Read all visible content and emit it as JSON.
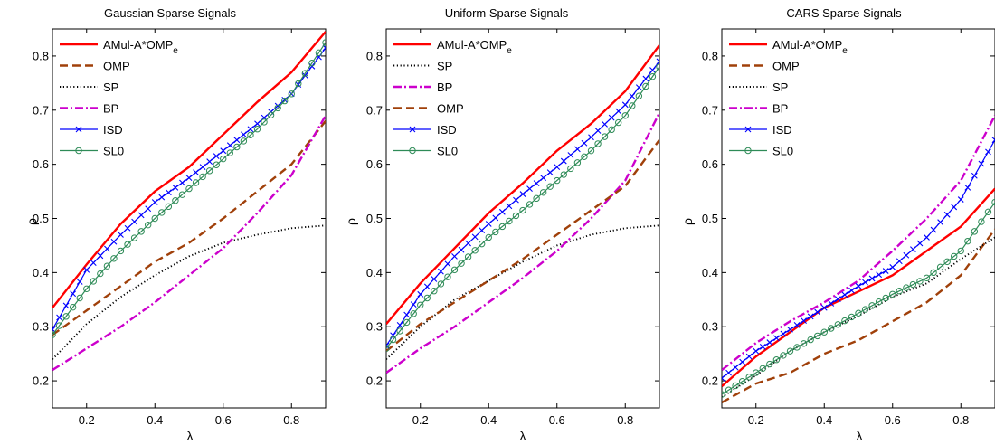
{
  "chart_data": [
    {
      "type": "line",
      "title": "Gaussian Sparse Signals",
      "xlabel": "λ",
      "ylabel": "ρ",
      "xlim": [
        0.1,
        0.9
      ],
      "ylim": [
        0.15,
        0.85
      ],
      "xticks": [
        0.2,
        0.4,
        0.6,
        0.8
      ],
      "yticks": [
        0.2,
        0.3,
        0.4,
        0.5,
        0.6,
        0.7,
        0.8
      ],
      "legend_position": "top-left",
      "grid": false,
      "series": [
        {
          "name": "AMul-A*OMP",
          "name_sub": "e",
          "color": "#ff0000",
          "style": "solid",
          "marker": "none",
          "x": [
            0.1,
            0.2,
            0.3,
            0.4,
            0.5,
            0.6,
            0.7,
            0.8,
            0.9
          ],
          "y": [
            0.335,
            0.415,
            0.49,
            0.55,
            0.595,
            0.655,
            0.715,
            0.77,
            0.845
          ]
        },
        {
          "name": "OMP",
          "color": "#a0400a",
          "style": "dashed",
          "marker": "none",
          "x": [
            0.1,
            0.2,
            0.3,
            0.4,
            0.5,
            0.6,
            0.7,
            0.8,
            0.9
          ],
          "y": [
            0.285,
            0.33,
            0.375,
            0.42,
            0.455,
            0.5,
            0.55,
            0.6,
            0.68
          ]
        },
        {
          "name": "SP",
          "color": "#000000",
          "style": "dotted",
          "marker": "none",
          "x": [
            0.1,
            0.2,
            0.3,
            0.4,
            0.5,
            0.6,
            0.7,
            0.8,
            0.9
          ],
          "y": [
            0.24,
            0.305,
            0.355,
            0.395,
            0.43,
            0.455,
            0.47,
            0.482,
            0.487
          ]
        },
        {
          "name": "BP",
          "color": "#cc00cc",
          "style": "dashdot",
          "marker": "none",
          "x": [
            0.1,
            0.2,
            0.3,
            0.4,
            0.5,
            0.6,
            0.7,
            0.8,
            0.9
          ],
          "y": [
            0.22,
            0.26,
            0.3,
            0.345,
            0.395,
            0.445,
            0.51,
            0.58,
            0.69
          ]
        },
        {
          "name": "ISD",
          "color": "#0000ff",
          "style": "solid",
          "marker": "x",
          "x": [
            0.1,
            0.2,
            0.3,
            0.4,
            0.5,
            0.6,
            0.7,
            0.8,
            0.9
          ],
          "y": [
            0.295,
            0.405,
            0.47,
            0.53,
            0.575,
            0.625,
            0.675,
            0.73,
            0.815
          ]
        },
        {
          "name": "SL0",
          "color": "#2e8b57",
          "style": "solid",
          "marker": "o",
          "x": [
            0.1,
            0.2,
            0.3,
            0.4,
            0.5,
            0.6,
            0.7,
            0.8,
            0.9
          ],
          "y": [
            0.285,
            0.37,
            0.44,
            0.5,
            0.555,
            0.61,
            0.665,
            0.73,
            0.825
          ]
        }
      ]
    },
    {
      "type": "line",
      "title": "Uniform Sparse Signals",
      "xlabel": "λ",
      "ylabel": "ρ",
      "xlim": [
        0.1,
        0.9
      ],
      "ylim": [
        0.15,
        0.85
      ],
      "xticks": [
        0.2,
        0.4,
        0.6,
        0.8
      ],
      "yticks": [
        0.2,
        0.3,
        0.4,
        0.5,
        0.6,
        0.7,
        0.8
      ],
      "legend_position": "top-left",
      "grid": false,
      "series": [
        {
          "name": "AMul-A*OMP",
          "name_sub": "e",
          "color": "#ff0000",
          "style": "solid",
          "marker": "none",
          "x": [
            0.1,
            0.2,
            0.3,
            0.4,
            0.5,
            0.6,
            0.7,
            0.8,
            0.9
          ],
          "y": [
            0.305,
            0.38,
            0.445,
            0.51,
            0.565,
            0.625,
            0.675,
            0.735,
            0.82
          ]
        },
        {
          "name": "SP",
          "color": "#000000",
          "style": "dotted",
          "marker": "none",
          "x": [
            0.1,
            0.2,
            0.3,
            0.4,
            0.5,
            0.6,
            0.7,
            0.8,
            0.9
          ],
          "y": [
            0.24,
            0.3,
            0.35,
            0.385,
            0.42,
            0.45,
            0.47,
            0.482,
            0.487
          ]
        },
        {
          "name": "BP",
          "color": "#cc00cc",
          "style": "dashdot",
          "marker": "none",
          "x": [
            0.1,
            0.2,
            0.3,
            0.4,
            0.5,
            0.6,
            0.7,
            0.8,
            0.9
          ],
          "y": [
            0.215,
            0.26,
            0.3,
            0.345,
            0.39,
            0.44,
            0.5,
            0.57,
            0.695
          ]
        },
        {
          "name": "OMP",
          "color": "#a0400a",
          "style": "dashed",
          "marker": "none",
          "x": [
            0.1,
            0.2,
            0.3,
            0.4,
            0.5,
            0.6,
            0.7,
            0.8,
            0.9
          ],
          "y": [
            0.255,
            0.305,
            0.345,
            0.385,
            0.425,
            0.47,
            0.515,
            0.56,
            0.645
          ]
        },
        {
          "name": "ISD",
          "color": "#0000ff",
          "style": "solid",
          "marker": "x",
          "x": [
            0.1,
            0.2,
            0.3,
            0.4,
            0.5,
            0.6,
            0.7,
            0.8,
            0.9
          ],
          "y": [
            0.265,
            0.36,
            0.43,
            0.49,
            0.545,
            0.595,
            0.65,
            0.71,
            0.79
          ]
        },
        {
          "name": "SL0",
          "color": "#2e8b57",
          "style": "solid",
          "marker": "o",
          "x": [
            0.1,
            0.2,
            0.3,
            0.4,
            0.5,
            0.6,
            0.7,
            0.8,
            0.9
          ],
          "y": [
            0.26,
            0.34,
            0.405,
            0.465,
            0.515,
            0.57,
            0.625,
            0.69,
            0.78
          ]
        }
      ]
    },
    {
      "type": "line",
      "title": "CARS Sparse Signals",
      "xlabel": "λ",
      "ylabel": "ρ",
      "xlim": [
        0.1,
        0.9
      ],
      "ylim": [
        0.15,
        0.85
      ],
      "xticks": [
        0.2,
        0.4,
        0.6,
        0.8
      ],
      "yticks": [
        0.2,
        0.3,
        0.4,
        0.5,
        0.6,
        0.7,
        0.8
      ],
      "legend_position": "top-left",
      "grid": false,
      "series": [
        {
          "name": "AMul-A*OMP",
          "name_sub": "e",
          "color": "#ff0000",
          "style": "solid",
          "marker": "none",
          "x": [
            0.1,
            0.2,
            0.3,
            0.4,
            0.5,
            0.6,
            0.7,
            0.8,
            0.9
          ],
          "y": [
            0.19,
            0.245,
            0.29,
            0.335,
            0.365,
            0.395,
            0.44,
            0.485,
            0.555
          ]
        },
        {
          "name": "OMP",
          "color": "#a0400a",
          "style": "dashed",
          "marker": "none",
          "x": [
            0.1,
            0.2,
            0.3,
            0.4,
            0.5,
            0.6,
            0.7,
            0.8,
            0.9
          ],
          "y": [
            0.16,
            0.195,
            0.215,
            0.25,
            0.275,
            0.31,
            0.345,
            0.395,
            0.48
          ]
        },
        {
          "name": "SP",
          "color": "#000000",
          "style": "dotted",
          "marker": "none",
          "x": [
            0.1,
            0.2,
            0.3,
            0.4,
            0.5,
            0.6,
            0.7,
            0.8,
            0.9
          ],
          "y": [
            0.17,
            0.21,
            0.255,
            0.29,
            0.32,
            0.355,
            0.38,
            0.425,
            0.465
          ]
        },
        {
          "name": "BP",
          "color": "#cc00cc",
          "style": "dashdot",
          "marker": "none",
          "x": [
            0.1,
            0.2,
            0.3,
            0.4,
            0.5,
            0.6,
            0.7,
            0.8,
            0.9
          ],
          "y": [
            0.22,
            0.27,
            0.31,
            0.345,
            0.385,
            0.44,
            0.5,
            0.57,
            0.69
          ]
        },
        {
          "name": "ISD",
          "color": "#0000ff",
          "style": "solid",
          "marker": "x",
          "x": [
            0.1,
            0.2,
            0.3,
            0.4,
            0.5,
            0.6,
            0.7,
            0.8,
            0.9
          ],
          "y": [
            0.205,
            0.255,
            0.295,
            0.335,
            0.375,
            0.41,
            0.465,
            0.535,
            0.645
          ]
        },
        {
          "name": "SL0",
          "color": "#2e8b57",
          "style": "solid",
          "marker": "o",
          "x": [
            0.1,
            0.2,
            0.3,
            0.4,
            0.5,
            0.6,
            0.7,
            0.8,
            0.9
          ],
          "y": [
            0.175,
            0.215,
            0.255,
            0.29,
            0.325,
            0.36,
            0.39,
            0.44,
            0.53
          ]
        }
      ]
    }
  ]
}
